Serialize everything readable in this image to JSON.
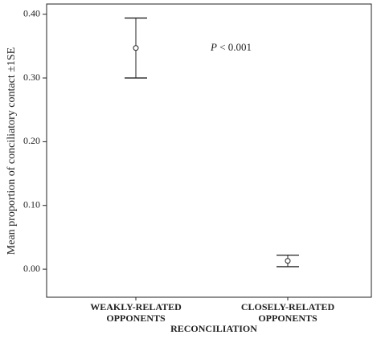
{
  "chart_data": {
    "type": "errorbar",
    "y_label": "Mean proportion of conciliatory contact ±1SE",
    "x_label": "RECONCILIATION",
    "categories": [
      "WEAKLY-RELATED OPPONENTS",
      "CLOSELY-RELATED OPPONENTS"
    ],
    "values": [
      0.347,
      0.013
    ],
    "errors": [
      0.047,
      0.009
    ],
    "color": "#222222",
    "ylim": [
      -0.044,
      0.416
    ],
    "yticks": [
      {
        "value": 0,
        "label": "0.00"
      },
      {
        "value": 0.1,
        "label": "0.10"
      },
      {
        "value": 0.2,
        "label": "0.20"
      },
      {
        "value": 0.3,
        "label": "0.30"
      },
      {
        "value": 0.4,
        "label": "0.40"
      }
    ],
    "annotation": {
      "italic": "P",
      "text": "< 0.001"
    }
  }
}
